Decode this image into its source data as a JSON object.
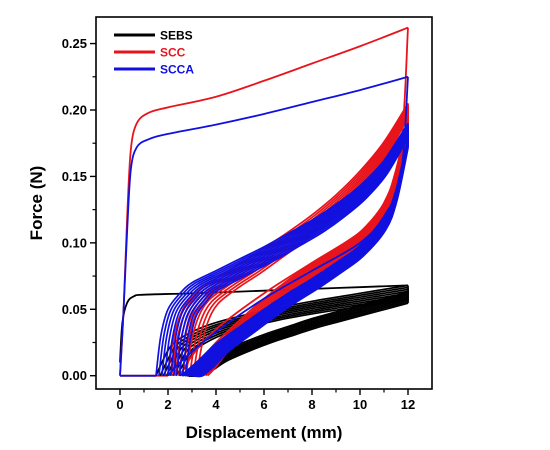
{
  "chart_data": {
    "type": "line",
    "title": "",
    "xlabel": "Displacement (mm)",
    "ylabel": "Force (N)",
    "xlim": [
      -1,
      13
    ],
    "ylim": [
      -0.01,
      0.27
    ],
    "x_ticks": [
      0,
      2,
      4,
      6,
      8,
      10,
      12
    ],
    "x_tick_labels": [
      "0",
      "2",
      "4",
      "6",
      "8",
      "10",
      "12"
    ],
    "y_ticks": [
      0.0,
      0.05,
      0.1,
      0.15,
      0.2,
      0.25
    ],
    "y_tick_labels": [
      "0.00",
      "0.05",
      "0.10",
      "0.15",
      "0.20",
      "0.25"
    ],
    "grid": false,
    "legend_position": "top-left",
    "series": [
      {
        "name": "SEBS",
        "color": "#000000",
        "first_loading": [
          [
            0.0,
            0.01
          ],
          [
            0.1,
            0.04
          ],
          [
            0.3,
            0.055
          ],
          [
            0.6,
            0.06
          ],
          [
            1.0,
            0.061
          ],
          [
            3,
            0.062
          ],
          [
            6,
            0.064
          ],
          [
            9,
            0.066
          ],
          [
            12,
            0.068
          ]
        ],
        "loading": [
          [
            1.5,
            0.0
          ],
          [
            1.8,
            0.012
          ],
          [
            2.2,
            0.024
          ],
          [
            3,
            0.033
          ],
          [
            4,
            0.04
          ],
          [
            6,
            0.049
          ],
          [
            8,
            0.056
          ],
          [
            10,
            0.062
          ],
          [
            12,
            0.068
          ]
        ],
        "unloading": [
          [
            12,
            0.063
          ],
          [
            11,
            0.058
          ],
          [
            10,
            0.053
          ],
          [
            9,
            0.048
          ],
          [
            8,
            0.043
          ],
          [
            7,
            0.037
          ],
          [
            6,
            0.031
          ],
          [
            5,
            0.024
          ],
          [
            4,
            0.016
          ],
          [
            3.3,
            0.008
          ],
          [
            2.8,
            0.002
          ],
          [
            2.6,
            0.0
          ]
        ],
        "cycle_offsets": [
          0,
          0.2,
          0.35,
          0.5,
          0.65,
          0.8,
          0.95,
          1.1
        ]
      },
      {
        "name": "SCC",
        "color": "#e8141c",
        "first_loading": [
          [
            0.0,
            0.0
          ],
          [
            0.15,
            0.05
          ],
          [
            0.3,
            0.12
          ],
          [
            0.45,
            0.17
          ],
          [
            0.7,
            0.19
          ],
          [
            1.2,
            0.198
          ],
          [
            2,
            0.202
          ],
          [
            4,
            0.21
          ],
          [
            6,
            0.222
          ],
          [
            8,
            0.235
          ],
          [
            10,
            0.248
          ],
          [
            12,
            0.262
          ]
        ],
        "first_unloading": [
          [
            12,
            0.262
          ],
          [
            11.7,
            0.17
          ],
          [
            11,
            0.13
          ],
          [
            10,
            0.108
          ],
          [
            8,
            0.085
          ],
          [
            6,
            0.062
          ],
          [
            4,
            0.035
          ],
          [
            3,
            0.015
          ],
          [
            2.5,
            0.0
          ]
        ],
        "loading": [
          [
            2.0,
            0.0
          ],
          [
            2.2,
            0.025
          ],
          [
            2.5,
            0.045
          ],
          [
            3,
            0.06
          ],
          [
            4,
            0.073
          ],
          [
            5,
            0.084
          ],
          [
            6,
            0.096
          ],
          [
            7,
            0.108
          ],
          [
            8,
            0.121
          ],
          [
            9,
            0.136
          ],
          [
            10,
            0.154
          ],
          [
            11,
            0.176
          ],
          [
            12,
            0.205
          ]
        ],
        "unloading": [
          [
            12,
            0.195
          ],
          [
            11.5,
            0.155
          ],
          [
            11,
            0.13
          ],
          [
            10,
            0.108
          ],
          [
            9,
            0.095
          ],
          [
            8,
            0.084
          ],
          [
            7,
            0.072
          ],
          [
            6,
            0.058
          ],
          [
            5,
            0.042
          ],
          [
            4,
            0.025
          ],
          [
            3.3,
            0.01
          ],
          [
            3.0,
            0.0
          ]
        ],
        "cycle_offsets": [
          0,
          0.18,
          0.36,
          0.54,
          0.72,
          0.9,
          1.08,
          1.26,
          1.44
        ]
      },
      {
        "name": "SCCA",
        "color": "#1010e0",
        "first_loading": [
          [
            0.0,
            0.0
          ],
          [
            0.15,
            0.05
          ],
          [
            0.3,
            0.11
          ],
          [
            0.45,
            0.155
          ],
          [
            0.7,
            0.172
          ],
          [
            1.2,
            0.178
          ],
          [
            2,
            0.182
          ],
          [
            4,
            0.189
          ],
          [
            6,
            0.197
          ],
          [
            8,
            0.206
          ],
          [
            10,
            0.215
          ],
          [
            12,
            0.225
          ]
        ],
        "first_unloading": [
          [
            12,
            0.225
          ],
          [
            11.7,
            0.15
          ],
          [
            11,
            0.12
          ],
          [
            10,
            0.1
          ],
          [
            8,
            0.079
          ],
          [
            6,
            0.058
          ],
          [
            4,
            0.033
          ],
          [
            2.5,
            0.01
          ],
          [
            2.0,
            0.0
          ]
        ],
        "loading": [
          [
            1.5,
            0.0
          ],
          [
            1.7,
            0.03
          ],
          [
            2.0,
            0.05
          ],
          [
            2.5,
            0.062
          ],
          [
            3,
            0.07
          ],
          [
            4,
            0.079
          ],
          [
            5,
            0.088
          ],
          [
            6,
            0.097
          ],
          [
            7,
            0.107
          ],
          [
            8,
            0.117
          ],
          [
            9,
            0.129
          ],
          [
            10,
            0.143
          ],
          [
            11,
            0.162
          ],
          [
            12,
            0.19
          ]
        ],
        "unloading": [
          [
            12,
            0.18
          ],
          [
            11.5,
            0.14
          ],
          [
            11,
            0.118
          ],
          [
            10,
            0.098
          ],
          [
            9,
            0.085
          ],
          [
            8,
            0.073
          ],
          [
            7,
            0.062
          ],
          [
            6,
            0.05
          ],
          [
            5,
            0.037
          ],
          [
            4,
            0.024
          ],
          [
            3.3,
            0.012
          ],
          [
            2.8,
            0.004
          ],
          [
            2.5,
            0.0
          ]
        ],
        "cycle_offsets": [
          0,
          0.14,
          0.28,
          0.42,
          0.56,
          0.7,
          0.84,
          0.98,
          1.12,
          1.26,
          1.4
        ]
      }
    ]
  }
}
